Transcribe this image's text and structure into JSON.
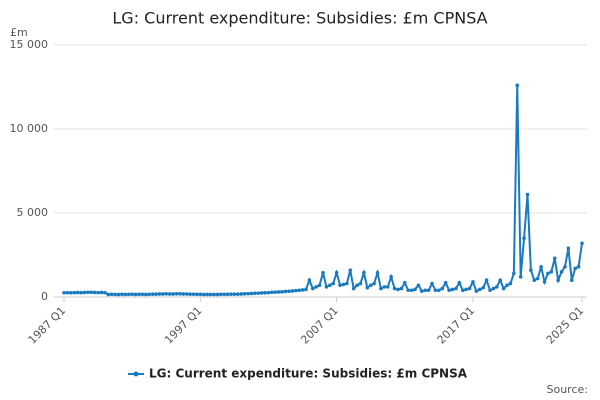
{
  "chart_data": {
    "type": "line",
    "title": "LG: Current expenditure: Subsidies: £m CPNSA",
    "y_unit": "£m",
    "source": "Source:",
    "categories": [
      "1987 Q1",
      null,
      null,
      null,
      null,
      null,
      null,
      null,
      null,
      null,
      null,
      null,
      null,
      null,
      null,
      null,
      null,
      null,
      null,
      null,
      null,
      null,
      null,
      null,
      null,
      null,
      null,
      null,
      null,
      null,
      null,
      null,
      null,
      null,
      null,
      null,
      null,
      null,
      null,
      null,
      "1997 Q1",
      null,
      null,
      null,
      null,
      null,
      null,
      null,
      null,
      null,
      null,
      null,
      null,
      null,
      null,
      null,
      null,
      null,
      null,
      null,
      null,
      null,
      null,
      null,
      null,
      null,
      null,
      null,
      null,
      null,
      null,
      null,
      null,
      null,
      null,
      null,
      null,
      null,
      null,
      null,
      "2007 Q1",
      null,
      null,
      null,
      null,
      null,
      null,
      null,
      null,
      null,
      null,
      null,
      null,
      null,
      null,
      null,
      null,
      null,
      null,
      null,
      null,
      null,
      null,
      null,
      null,
      null,
      null,
      null,
      null,
      null,
      null,
      null,
      null,
      null,
      null,
      null,
      null,
      null,
      null,
      null,
      "2017 Q1",
      null,
      null,
      null,
      null,
      null,
      null,
      null,
      null,
      null,
      null,
      null,
      null,
      null,
      null,
      null,
      null,
      null,
      null,
      null,
      null,
      null,
      null,
      null,
      null,
      null,
      null,
      null,
      null,
      null,
      null,
      null,
      "2025 Q1"
    ],
    "series": [
      {
        "name": "LG: Current expenditure: Subsidies: £m CPNSA",
        "color": "#1a7abf",
        "values": [
          250,
          260,
          250,
          260,
          270,
          260,
          270,
          280,
          280,
          270,
          260,
          270,
          260,
          150,
          160,
          150,
          150,
          160,
          150,
          160,
          160,
          150,
          160,
          160,
          150,
          160,
          170,
          170,
          180,
          180,
          190,
          180,
          180,
          190,
          190,
          180,
          180,
          170,
          170,
          160,
          160,
          150,
          150,
          150,
          150,
          150,
          160,
          160,
          160,
          170,
          170,
          170,
          180,
          190,
          200,
          210,
          220,
          230,
          240,
          250,
          260,
          280,
          290,
          300,
          310,
          330,
          340,
          360,
          380,
          400,
          420,
          450,
          1000,
          500,
          600,
          700,
          1450,
          600,
          700,
          800,
          1450,
          700,
          750,
          800,
          1600,
          500,
          700,
          800,
          1450,
          550,
          700,
          800,
          1450,
          500,
          600,
          600,
          1200,
          500,
          450,
          500,
          850,
          400,
          400,
          450,
          700,
          350,
          400,
          400,
          800,
          400,
          400,
          500,
          850,
          400,
          450,
          500,
          850,
          400,
          450,
          500,
          900,
          350,
          450,
          550,
          1000,
          400,
          500,
          600,
          1000,
          500,
          700,
          800,
          1400,
          12600,
          1200,
          3500,
          6100,
          1600,
          1000,
          1100,
          1800,
          900,
          1400,
          1500,
          2300,
          1000,
          1500,
          1800,
          2900,
          1000,
          1700,
          1800,
          3200
        ]
      }
    ],
    "ylim": [
      0,
      15000
    ],
    "yticks": [
      0,
      {
        "value": 5000,
        "label": "5 000"
      },
      {
        "value": 10000,
        "label": "10 000"
      },
      {
        "value": 15000,
        "label": "15 000"
      }
    ],
    "grid": true,
    "legend": "bottom"
  }
}
